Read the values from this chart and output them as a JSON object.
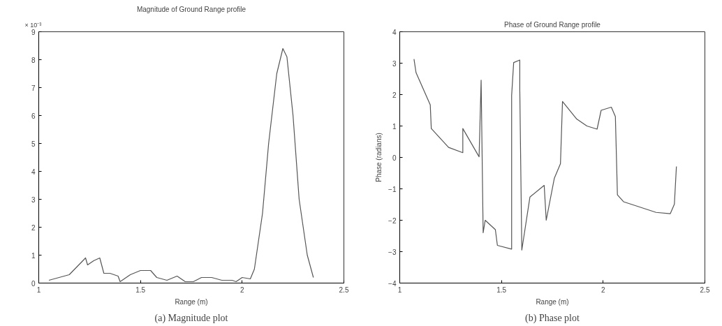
{
  "chart_data": [
    {
      "type": "line",
      "title": "Magnitude of Ground Range profile",
      "xlabel": "Range (m)",
      "xlim": [
        1,
        2.5
      ],
      "ylim": [
        0,
        9
      ],
      "xticks": [
        1,
        1.5,
        2,
        2.5
      ],
      "yticks": [
        0,
        1,
        2,
        3,
        4,
        5,
        6,
        7,
        8,
        9
      ],
      "grid": false,
      "annotations": [
        "× 10⁻³",
        "(a) Magnitude plot"
      ],
      "series": [
        {
          "color": "#555555",
          "x": [
            1.05,
            1.15,
            1.23,
            1.24,
            1.27,
            1.3,
            1.32,
            1.35,
            1.39,
            1.4,
            1.45,
            1.5,
            1.55,
            1.58,
            1.63,
            1.68,
            1.72,
            1.76,
            1.8,
            1.85,
            1.9,
            1.95,
            1.97,
            2.0,
            2.04,
            2.06,
            2.1,
            2.13,
            2.17,
            2.2,
            2.22,
            2.25,
            2.28,
            2.32,
            2.35
          ],
          "values": [
            0.1,
            0.3,
            0.9,
            0.65,
            0.8,
            0.9,
            0.35,
            0.35,
            0.25,
            0.05,
            0.3,
            0.45,
            0.45,
            0.2,
            0.1,
            0.25,
            0.05,
            0.05,
            0.2,
            0.2,
            0.1,
            0.1,
            0.05,
            0.2,
            0.15,
            0.5,
            2.5,
            5,
            7.5,
            8.4,
            8.1,
            6,
            3,
            1,
            0.2
          ]
        }
      ]
    },
    {
      "type": "line",
      "title": "Phase of Ground Range profile",
      "xlabel": "Range (m)",
      "ylabel": "Phase (radians)",
      "xlim": [
        1,
        2.5
      ],
      "ylim": [
        -4,
        4
      ],
      "xticks": [
        1,
        1.5,
        2,
        2.5
      ],
      "yticks": [
        -4,
        -3,
        -2,
        -1,
        0,
        1,
        2,
        3,
        4
      ],
      "grid": false,
      "annotations": [
        "(b) Phase plot"
      ],
      "series": [
        {
          "color": "#555555",
          "x": [
            1.07,
            1.08,
            1.15,
            1.155,
            1.24,
            1.31,
            1.31,
            1.39,
            1.4,
            1.41,
            1.42,
            1.47,
            1.48,
            1.55,
            1.55,
            1.56,
            1.59,
            1.59,
            1.6,
            1.64,
            1.71,
            1.72,
            1.76,
            1.79,
            1.8,
            1.87,
            1.92,
            1.97,
            1.99,
            2.04,
            2.06,
            2.07,
            2.1,
            2.26,
            2.33,
            2.35,
            2.36
          ],
          "values": [
            3.13,
            2.7,
            1.67,
            0.92,
            0.32,
            0.15,
            0.92,
            0.02,
            2.46,
            -2.4,
            -2.0,
            -2.3,
            -2.8,
            -2.92,
            1.97,
            3.02,
            3.1,
            2.2,
            -2.95,
            -1.26,
            -0.89,
            -2.0,
            -0.66,
            -0.2,
            1.78,
            1.22,
            1.0,
            0.9,
            1.5,
            1.6,
            1.3,
            -1.19,
            -1.41,
            -1.75,
            -1.79,
            -1.49,
            -0.29
          ]
        }
      ]
    }
  ]
}
